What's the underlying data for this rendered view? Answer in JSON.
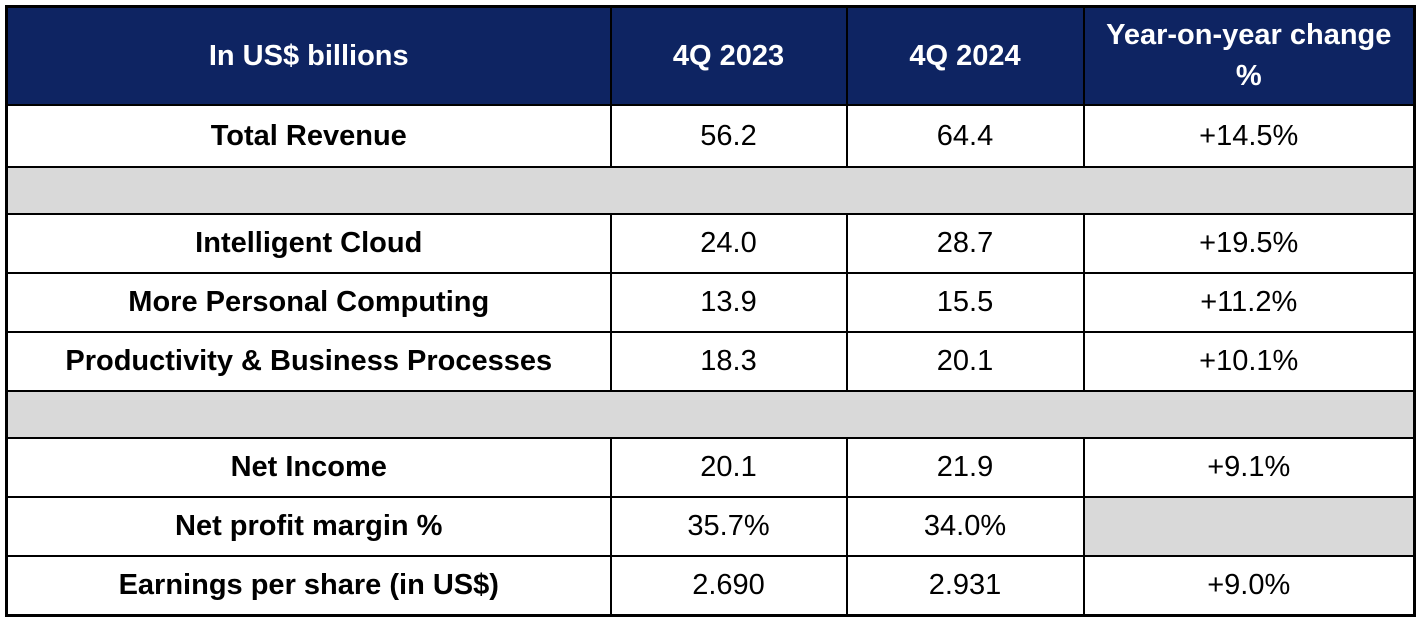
{
  "table": {
    "header": {
      "col_label": "In US$ billions",
      "col_2023": "4Q 2023",
      "col_2024": "4Q 2024",
      "col_yoy": "Year-on-year change %"
    },
    "rows": [
      {
        "label": "Total Revenue",
        "v2023": "56.2",
        "v2024": "64.4",
        "yoy": "+14.5%"
      },
      {
        "label": "Intelligent Cloud",
        "v2023": "24.0",
        "v2024": "28.7",
        "yoy": "+19.5%"
      },
      {
        "label": "More Personal Computing",
        "v2023": "13.9",
        "v2024": "15.5",
        "yoy": "+11.2%"
      },
      {
        "label": "Productivity & Business Processes",
        "v2023": "18.3",
        "v2024": "20.1",
        "yoy": "+10.1%"
      },
      {
        "label": "Net Income",
        "v2023": "20.1",
        "v2024": "21.9",
        "yoy": "+9.1%"
      },
      {
        "label": "Net profit margin %",
        "v2023": "35.7%",
        "v2024": "34.0%",
        "yoy": ""
      },
      {
        "label": "Earnings per share (in US$)",
        "v2023": "2.690",
        "v2024": "2.931",
        "yoy": "+9.0%"
      }
    ],
    "colors": {
      "header_bg": "#0e2462",
      "header_text": "#ffffff",
      "spacer_bg": "#d9d9d9",
      "grid": "#000000"
    }
  },
  "chart_data": {
    "type": "table",
    "title": "In US$ billions",
    "columns": [
      "In US$ billions",
      "4Q 2023",
      "4Q 2024",
      "Year-on-year change %"
    ],
    "rows": [
      [
        "Total Revenue",
        56.2,
        64.4,
        "+14.5%"
      ],
      [
        "Intelligent Cloud",
        24.0,
        28.7,
        "+19.5%"
      ],
      [
        "More Personal Computing",
        13.9,
        15.5,
        "+11.2%"
      ],
      [
        "Productivity & Business Processes",
        18.3,
        20.1,
        "+10.1%"
      ],
      [
        "Net Income",
        20.1,
        21.9,
        "+9.1%"
      ],
      [
        "Net profit margin %",
        "35.7%",
        "34.0%",
        null
      ],
      [
        "Earnings per share (in US$)",
        "2.690",
        "2.931",
        "+9.0%"
      ]
    ],
    "notes": "Gray spacer bands after row 1 and row 4; Year-on-year cell for Net profit margin % is blank/gray"
  }
}
